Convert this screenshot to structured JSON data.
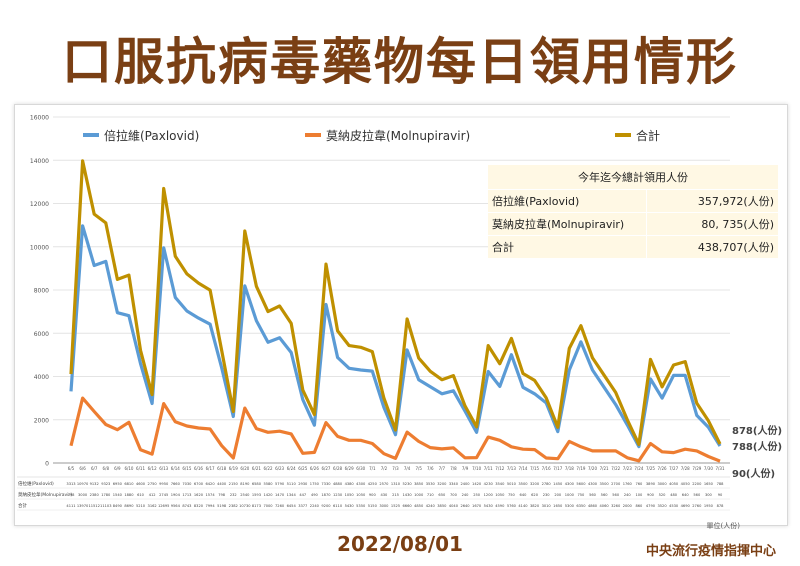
{
  "header": {
    "title": "口服抗病毒藥物每日領用情形"
  },
  "footer": {
    "date": "2022/08/01",
    "org": "中央流行疫情指揮中心",
    "unit": "單位(人份)"
  },
  "summary_box": {
    "title": "今年迄今總計領用人份",
    "rows": [
      {
        "name": "倍拉維(Paxlovid)",
        "value": "357,972(人份)"
      },
      {
        "name": "莫納皮拉韋(Molnupiravir)",
        "value": "80, 735(人份)"
      },
      {
        "name": "合計",
        "value": "438,707(人份)"
      }
    ]
  },
  "end_labels": {
    "total": "878(人份)",
    "paxlovid": "788(人份)",
    "molnupiravir": "90(人份)"
  },
  "table_row_labels": [
    "倍拉維(Paxlovid)",
    "莫納皮拉韋(Molnupiravir)",
    "合計"
  ],
  "colors": {
    "paxlovid": "#5b9bd5",
    "molnupiravir": "#ed7d31",
    "total": "#bf9000",
    "title": "#7a3f14"
  },
  "chart_data": {
    "type": "line",
    "ylim": [
      0,
      16000
    ],
    "yticks": [
      "0",
      "2000",
      "4000",
      "6000",
      "8000",
      "10000",
      "12000",
      "14000",
      "16000"
    ],
    "grid": true,
    "legend": "top",
    "x": [
      "6/5",
      "6/6",
      "6/7",
      "6/8",
      "6/9",
      "6/10",
      "6/11",
      "6/12",
      "6/13",
      "6/14",
      "6/15",
      "6/16",
      "6/17",
      "6/18",
      "6/19",
      "6/20",
      "6/21",
      "6/22",
      "6/23",
      "6/24",
      "6/25",
      "6/26",
      "6/27",
      "6/28",
      "6/29",
      "6/30",
      "7/1",
      "7/2",
      "7/3",
      "7/4",
      "7/5",
      "7/6",
      "7/7",
      "7/8",
      "7/9",
      "7/10",
      "7/11",
      "7/12",
      "7/13",
      "7/14",
      "7/15",
      "7/16",
      "7/17",
      "7/18",
      "7/19",
      "7/20",
      "7/21",
      "7/22",
      "7/23",
      "7/24",
      "7/25",
      "7/26",
      "7/27",
      "7/28",
      "7/29",
      "7/30",
      "7/31"
    ],
    "series": [
      {
        "name": "倍拉維(Paxlovid)",
        "key": "paxlovid",
        "values": [
          3313,
          10970,
          9132,
          9323,
          6950,
          6810,
          4600,
          2750,
          9950,
          7660,
          7030,
          6700,
          6420,
          4400,
          2150,
          8190,
          6580,
          5580,
          5790,
          5110,
          2930,
          1750,
          7330,
          4880,
          4380,
          4300,
          4250,
          2570,
          1310,
          5230,
          3850,
          3530,
          3200,
          3340,
          2400,
          1420,
          4230,
          3540,
          5010,
          3500,
          3200,
          2780,
          1450,
          4300,
          5600,
          4300,
          3500,
          2700,
          1760,
          760,
          3890,
          3000,
          4050,
          4050,
          2200,
          1650,
          788
        ]
      },
      {
        "name": "莫納皮拉韋(Molnupiravir)",
        "key": "molnupiravir",
        "values": [
          798,
          3000,
          2380,
          1780,
          1540,
          1880,
          610,
          412,
          2745,
          1904,
          1713,
          1620,
          1574,
          798,
          232,
          2540,
          1593,
          1420,
          1470,
          1344,
          447,
          490,
          1870,
          1230,
          1050,
          1050,
          900,
          430,
          215,
          1430,
          1000,
          710,
          650,
          700,
          240,
          250,
          1200,
          1050,
          750,
          640,
          620,
          230,
          200,
          1000,
          750,
          560,
          560,
          560,
          240,
          100,
          900,
          520,
          480,
          640,
          560,
          300,
          90
        ]
      },
      {
        "name": "合計",
        "key": "total",
        "values": [
          4111,
          13970,
          11512,
          11103,
          8490,
          8690,
          5210,
          3162,
          12695,
          9564,
          8743,
          8320,
          7994,
          5198,
          2382,
          10730,
          8173,
          7000,
          7260,
          6454,
          3377,
          2240,
          9200,
          6110,
          5430,
          5350,
          5150,
          3000,
          1525,
          6660,
          4850,
          4240,
          3850,
          4040,
          2640,
          1670,
          5430,
          4590,
          5760,
          4140,
          3820,
          3010,
          1650,
          5300,
          6350,
          4860,
          4060,
          3260,
          2000,
          860,
          4790,
          3520,
          4530,
          4690,
          2760,
          1950,
          878
        ]
      }
    ]
  }
}
